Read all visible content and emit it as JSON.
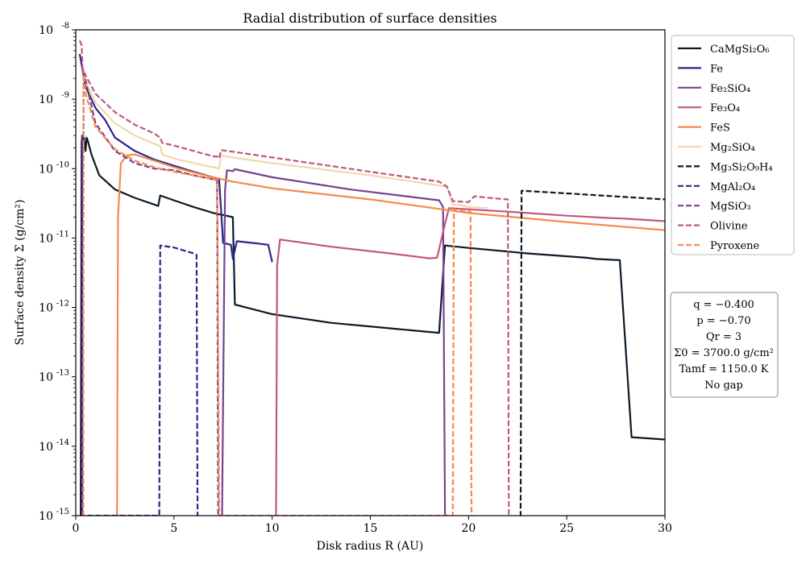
{
  "chart_data": {
    "type": "line",
    "title": "Radial distribution of surface densities",
    "xlabel": "Disk radius R (AU)",
    "ylabel": "Surface density Σ (g/cm²)",
    "xlim": [
      0,
      30
    ],
    "ylim": [
      1e-15,
      1e-08
    ],
    "yscale": "log",
    "x_ticks": [
      0,
      5,
      10,
      15,
      20,
      25,
      30
    ],
    "y_ticks": [
      1e-15,
      1e-14,
      1e-13,
      1e-12,
      1e-11,
      1e-10,
      1e-09,
      1e-08
    ],
    "x_tick_labels": [
      "0",
      "5",
      "10",
      "15",
      "20",
      "25",
      "30"
    ],
    "y_tick_labels": [
      "10^-15",
      "10^-14",
      "10^-13",
      "10^-12",
      "10^-11",
      "10^-10",
      "10^-9",
      "10^-8"
    ],
    "grid": false,
    "legend_position": "outside-right-top",
    "series": [
      {
        "name": "CaMgSi₂O₆",
        "color": "#0b1a28",
        "style": "solid",
        "x": [
          0.25,
          0.3,
          0.4,
          0.5,
          0.55,
          0.6,
          0.8,
          1.2,
          2.0,
          3.0,
          4.2,
          4.3,
          5.0,
          6.0,
          7.0,
          8.0,
          8.1,
          10.0,
          13.0,
          16.0,
          18.5,
          18.8,
          20.0,
          23.0,
          26.0,
          26.5,
          27.7,
          28.3,
          30.0
        ],
        "y": [
          1e-15,
          2.5e-10,
          3e-10,
          1.8e-10,
          2.8e-10,
          2.6e-10,
          1.6e-10,
          8e-11,
          5e-11,
          3.8e-11,
          2.9e-11,
          4.1e-11,
          3.5e-11,
          2.8e-11,
          2.3e-11,
          2e-11,
          1.1e-12,
          8e-13,
          6e-13,
          5e-13,
          4.3e-13,
          7.8e-12,
          7.2e-12,
          6e-12,
          5.2e-12,
          5e-12,
          4.8e-12,
          1.35e-14,
          1.25e-14
        ]
      },
      {
        "name": "Fe",
        "color": "#2d2787",
        "style": "solid",
        "x": [
          0.2,
          0.5,
          1.0,
          1.5,
          2.0,
          3.0,
          4.0,
          5.0,
          6.0,
          7.0,
          7.3,
          7.5,
          7.9,
          8.0,
          8.2,
          9.0,
          9.8,
          10.0
        ],
        "y": [
          4.5e-09,
          1.5e-09,
          7.5e-10,
          5e-10,
          2.8e-10,
          1.8e-10,
          1.35e-10,
          1.1e-10,
          9e-11,
          7.5e-11,
          7e-11,
          8.5e-12,
          8e-12,
          5e-12,
          9e-12,
          8.5e-12,
          8e-12,
          4.5e-12
        ]
      },
      {
        "name": "Fe₂SiO₄",
        "color": "#77418f",
        "style": "solid",
        "x": [
          7.3,
          7.45,
          7.6,
          7.7,
          8.0,
          8.1,
          10.0,
          14.0,
          18.5,
          18.7,
          18.8
        ],
        "y": [
          1e-15,
          1e-15,
          5e-11,
          9.5e-11,
          9.2e-11,
          9.8e-11,
          7.5e-11,
          5e-11,
          3.5e-11,
          2.8e-11,
          1e-15
        ]
      },
      {
        "name": "Fe₃O₄",
        "color": "#c1577d",
        "style": "solid",
        "x": [
          10.2,
          10.25,
          10.4,
          13.0,
          16.0,
          18.0,
          18.4,
          18.8,
          19.0,
          22.0,
          25.0,
          27.0,
          28.0,
          30.0
        ],
        "y": [
          1e-15,
          4e-12,
          9.5e-12,
          7.5e-12,
          6e-12,
          5.1e-12,
          5.2e-12,
          1.6e-11,
          2.7e-11,
          2.4e-11,
          2.1e-11,
          1.95e-11,
          1.9e-11,
          1.75e-11
        ]
      },
      {
        "name": "FeS",
        "color": "#f5894d",
        "style": "solid",
        "x": [
          2.1,
          2.15,
          2.3,
          2.6,
          3.0,
          4.0,
          5.0,
          6.0,
          7.0,
          8.0,
          10.0,
          15.0,
          20.0,
          25.0,
          30.0
        ],
        "y": [
          1e-15,
          2e-11,
          1.2e-10,
          1.55e-10,
          1.6e-10,
          1.3e-10,
          1.05e-10,
          8.8e-11,
          7.5e-11,
          6.5e-11,
          5.2e-11,
          3.6e-11,
          2.3e-11,
          1.7e-11,
          1.3e-11
        ]
      },
      {
        "name": "Mg₂SiO₄",
        "color": "#f3d7b0",
        "style": "solid",
        "x": [
          0.4,
          0.5,
          1.0,
          2.0,
          3.0,
          4.3,
          4.4,
          5.0,
          6.0,
          7.0,
          7.3,
          7.4,
          8.0,
          10.0,
          15.0,
          18.9,
          19.2,
          19.6,
          20.0,
          21.0
        ],
        "y": [
          2e-09,
          1.8e-09,
          9e-10,
          4.5e-10,
          3e-10,
          2.1e-10,
          1.6e-10,
          1.4e-10,
          1.2e-10,
          1.05e-10,
          1e-10,
          1.55e-10,
          1.45e-10,
          1.2e-10,
          8e-11,
          5.5e-11,
          3e-11,
          3e-11,
          2.8e-11,
          2.7e-11
        ]
      },
      {
        "name": "Mg₃Si₂O₉H₄",
        "color": "#0b1a28",
        "style": "dashed",
        "x": [
          22.6,
          22.65,
          22.7,
          25.0,
          30.0
        ],
        "y": [
          1e-15,
          1e-15,
          4.8e-11,
          4.4e-11,
          3.6e-11
        ]
      },
      {
        "name": "MgAl₂O₄",
        "color": "#2d2787",
        "style": "dashed",
        "x": [
          0.3,
          0.32,
          0.33,
          0.35,
          4.25,
          4.3,
          5.0,
          6.0,
          6.15,
          6.2
        ],
        "y": [
          1e-15,
          3e-10,
          1e-15,
          1e-15,
          1e-15,
          7.8e-12,
          7.3e-12,
          6e-12,
          5.7e-12,
          1e-15
        ]
      },
      {
        "name": "MgSiO₃",
        "color": "#77418f",
        "style": "dashed",
        "x": [
          0.35,
          0.4,
          1.0,
          2.0,
          3.0,
          4.0,
          5.0,
          6.0,
          7.0,
          7.2,
          7.25,
          7.3
        ],
        "y": [
          1e-15,
          2.5e-09,
          4.5e-10,
          1.8e-10,
          1.2e-10,
          1e-10,
          9.5e-11,
          8e-11,
          7e-11,
          6.8e-11,
          1e-15,
          1e-15
        ]
      },
      {
        "name": "Olivine",
        "color": "#c1577d",
        "style": "dashed",
        "x": [
          0.2,
          0.3,
          0.35,
          0.5,
          1.0,
          2.0,
          3.0,
          4.0,
          4.3,
          4.4,
          5.0,
          6.0,
          7.0,
          7.2,
          7.3,
          7.4,
          8.0,
          10.0,
          15.0,
          18.5,
          18.9,
          19.2,
          20.0,
          20.3,
          21.0,
          22.0,
          22.05
        ],
        "y": [
          7e-09,
          6e-09,
          2.8e-09,
          2.2e-09,
          1.2e-09,
          6.5e-10,
          4.3e-10,
          3.2e-10,
          2.8e-10,
          2.35e-10,
          2.15e-10,
          1.8e-10,
          1.5e-10,
          1.5e-10,
          1.4e-10,
          1.85e-10,
          1.75e-10,
          1.45e-10,
          9e-11,
          6.5e-11,
          5.5e-11,
          3.4e-11,
          3.3e-11,
          4e-11,
          3.8e-11,
          3.6e-11,
          1e-15
        ]
      },
      {
        "name": "Pyroxene",
        "color": "#f5894d",
        "style": "dashed",
        "x": [
          0.35,
          0.38,
          0.4,
          0.5,
          1.0,
          2.0,
          3.0,
          4.0,
          4.3,
          5.0,
          6.0,
          7.0,
          7.2,
          7.3,
          19.2,
          19.25,
          19.3,
          20.1,
          20.15,
          20.2
        ],
        "y": [
          1e-15,
          1e-15,
          2.6e-09,
          1.2e-09,
          4e-10,
          1.9e-10,
          1.3e-10,
          1.05e-10,
          1e-10,
          9e-11,
          8e-11,
          7e-11,
          6.8e-11,
          1e-15,
          1e-15,
          2.6e-11,
          2.5e-11,
          2.4e-11,
          1e-15,
          1e-15
        ]
      }
    ]
  },
  "parameters": [
    "q = −0.400",
    "p = −0.70",
    "Qr = 3",
    "Σ0 = 3700.0 g/cm²",
    "Tamf = 1150.0 K",
    "No gap"
  ]
}
